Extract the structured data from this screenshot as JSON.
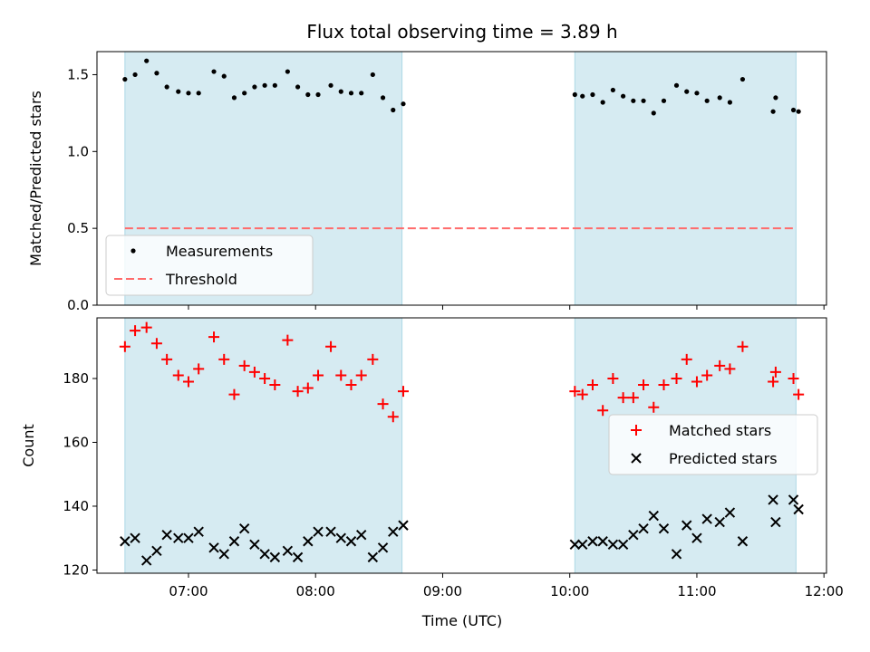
{
  "chart_data": {
    "type": "scatter",
    "title": "Flux total observing time = 3.89 h",
    "xlabel": "Time (UTC)",
    "x_ticks": [
      "07:00",
      "08:00",
      "09:00",
      "10:00",
      "11:00",
      "12:00"
    ],
    "x_tick_hours": [
      7,
      8,
      9,
      10,
      11,
      12
    ],
    "xlim_hours": [
      6.28,
      12.02
    ],
    "shaded_intervals_hours": [
      [
        6.5,
        8.68
      ],
      [
        10.04,
        11.78
      ]
    ],
    "shade_color": "#add8e6",
    "top": {
      "ylabel": "Matched/Predicted stars",
      "ylim": [
        0,
        1.65
      ],
      "y_ticks": [
        "0.0",
        "0.5",
        "1.0",
        "1.5"
      ],
      "y_tick_values": [
        0,
        0.5,
        1.0,
        1.5
      ],
      "series": [
        {
          "name": "Measurements",
          "marker": "dot",
          "color": "#000000",
          "x": [
            6.5,
            6.58,
            6.67,
            6.75,
            6.83,
            6.92,
            7.0,
            7.08,
            7.2,
            7.28,
            7.36,
            7.44,
            7.52,
            7.6,
            7.68,
            7.78,
            7.86,
            7.94,
            8.02,
            8.12,
            8.2,
            8.28,
            8.36,
            8.45,
            8.53,
            8.61,
            8.69,
            10.04,
            10.1,
            10.18,
            10.26,
            10.34,
            10.42,
            10.5,
            10.58,
            10.66,
            10.74,
            10.84,
            10.92,
            11.0,
            11.08,
            11.18,
            11.26,
            11.36,
            11.6,
            11.62,
            11.76,
            11.8
          ],
          "y": [
            1.47,
            1.5,
            1.59,
            1.51,
            1.42,
            1.39,
            1.38,
            1.38,
            1.52,
            1.49,
            1.35,
            1.38,
            1.42,
            1.43,
            1.43,
            1.52,
            1.42,
            1.37,
            1.37,
            1.43,
            1.39,
            1.38,
            1.38,
            1.5,
            1.35,
            1.27,
            1.31,
            1.37,
            1.36,
            1.37,
            1.32,
            1.4,
            1.36,
            1.33,
            1.33,
            1.25,
            1.33,
            1.43,
            1.39,
            1.38,
            1.33,
            1.35,
            1.32,
            1.47,
            1.26,
            1.35,
            1.27,
            1.26
          ]
        },
        {
          "name": "Threshold",
          "line_style": "dashed",
          "color": "#ff6b6b",
          "x": [
            6.5,
            11.78
          ],
          "y": [
            0.5,
            0.5
          ]
        }
      ],
      "legend": [
        "Measurements",
        "Threshold"
      ],
      "legend_placement": "lower-left"
    },
    "bottom": {
      "ylabel": "Count",
      "ylim": [
        119,
        199
      ],
      "y_ticks": [
        "120",
        "140",
        "160",
        "180"
      ],
      "y_tick_values": [
        120,
        140,
        160,
        180
      ],
      "series": [
        {
          "name": "Matched stars",
          "marker": "plus",
          "color": "#ff0000",
          "x": [
            6.5,
            6.58,
            6.67,
            6.75,
            6.83,
            6.92,
            7.0,
            7.08,
            7.2,
            7.28,
            7.36,
            7.44,
            7.52,
            7.6,
            7.68,
            7.78,
            7.86,
            7.94,
            8.02,
            8.12,
            8.2,
            8.28,
            8.36,
            8.45,
            8.53,
            8.61,
            8.69,
            10.04,
            10.1,
            10.18,
            10.26,
            10.34,
            10.42,
            10.5,
            10.58,
            10.66,
            10.74,
            10.84,
            10.92,
            11.0,
            11.08,
            11.18,
            11.26,
            11.36,
            11.6,
            11.62,
            11.76,
            11.8
          ],
          "y": [
            190,
            195,
            196,
            191,
            186,
            181,
            179,
            183,
            193,
            186,
            175,
            184,
            182,
            180,
            178,
            192,
            176,
            177,
            181,
            190,
            181,
            178,
            181,
            186,
            172,
            168,
            176,
            176,
            175,
            178,
            170,
            180,
            174,
            174,
            178,
            171,
            178,
            180,
            186,
            179,
            181,
            184,
            183,
            190,
            179,
            182,
            180,
            175
          ]
        },
        {
          "name": "Predicted stars",
          "marker": "x",
          "color": "#000000",
          "x": [
            6.5,
            6.58,
            6.67,
            6.75,
            6.83,
            6.92,
            7.0,
            7.08,
            7.2,
            7.28,
            7.36,
            7.44,
            7.52,
            7.6,
            7.68,
            7.78,
            7.86,
            7.94,
            8.02,
            8.12,
            8.2,
            8.28,
            8.36,
            8.45,
            8.53,
            8.61,
            8.69,
            10.04,
            10.1,
            10.18,
            10.26,
            10.34,
            10.42,
            10.5,
            10.58,
            10.66,
            10.74,
            10.84,
            10.92,
            11.0,
            11.08,
            11.18,
            11.26,
            11.36,
            11.6,
            11.62,
            11.76,
            11.8
          ],
          "y": [
            129,
            130,
            123,
            126,
            131,
            130,
            130,
            132,
            127,
            125,
            129,
            133,
            128,
            125,
            124,
            126,
            124,
            129,
            132,
            132,
            130,
            129,
            131,
            124,
            127,
            132,
            134,
            128,
            128,
            129,
            129,
            128,
            128,
            131,
            133,
            137,
            133,
            125,
            134,
            130,
            136,
            135,
            138,
            129,
            142,
            135,
            142,
            139
          ]
        }
      ],
      "legend": [
        "Matched stars",
        "Predicted stars"
      ],
      "legend_placement": "center-right"
    }
  }
}
